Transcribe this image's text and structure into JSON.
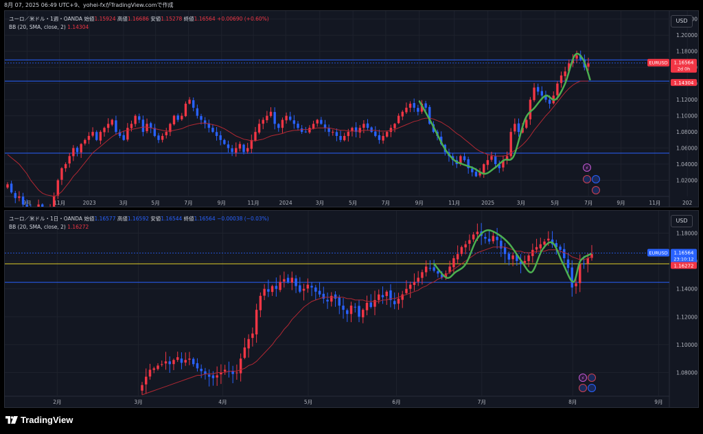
{
  "caption": "8月 07, 2025 06:49 UTC+9、yohei-fxがTradingView.comで作成",
  "branding": "TradingView",
  "colors": {
    "up": "#f23645",
    "down": "#2962ff",
    "bb": "#b22833",
    "wave": "#4caf50",
    "hline": "#2962ff",
    "yellow": "#e5d32a"
  },
  "panes": [
    {
      "legend": {
        "title": "ユーロ／米ドル・1週・OANDA",
        "open_k": "始値",
        "open_v": "1.15924",
        "high_k": "高値",
        "high_v": "1.16686",
        "low_k": "安値",
        "low_v": "1.15278",
        "close_k": "終値",
        "close_v": "1.16564",
        "change": "+0.00690 (+0.60%)",
        "bb_label": "BB (20, SMA, close, 2)",
        "bb_value": "1.14304"
      },
      "currency_button": "USD",
      "price_tag": {
        "symbol": "EURUSD",
        "price": "1.16564",
        "countdown": "2d 0h"
      },
      "bb_tag": "1.14304"
    },
    {
      "legend": {
        "title": "ユーロ／米ドル・1日・OANDA",
        "open_k": "始値",
        "open_v": "1.16577",
        "high_k": "高値",
        "high_v": "1.16592",
        "low_k": "安値",
        "low_v": "1.16544",
        "close_k": "終値",
        "close_v": "1.16564",
        "change": "−0.00038 (−0.03%)",
        "bb_label": "BB (20, SMA, close, 2)",
        "bb_value": "1.16272"
      },
      "currency_button": "USD",
      "price_tag": {
        "symbol": "EURUSD",
        "price": "1.16564",
        "countdown": "23:10:12"
      },
      "bb_tag": "1.16272"
    }
  ],
  "chart_data": [
    {
      "type": "candlestick",
      "timeframe": "1W",
      "ylim": [
        1.0,
        1.23
      ],
      "y_ticks": [
        "1.22000",
        "1.20000",
        "1.18000",
        "1.16000",
        "1.14000",
        "1.12000",
        "1.10000",
        "1.08000",
        "1.06000",
        "1.04000",
        "1.02000",
        "1.00000"
      ],
      "x_ticks": [
        {
          "label": "9月",
          "pos": 0.0322
        },
        {
          "label": "11月",
          "pos": 0.0789
        },
        {
          "label": "2023",
          "pos": 0.1219
        },
        {
          "label": "3月",
          "pos": 0.1711
        },
        {
          "label": "5月",
          "pos": 0.2174
        },
        {
          "label": "7月",
          "pos": 0.2648
        },
        {
          "label": "9月",
          "pos": 0.3126
        },
        {
          "label": "11月",
          "pos": 0.3585
        },
        {
          "label": "2024",
          "pos": 0.4051
        },
        {
          "label": "3月",
          "pos": 0.4543
        },
        {
          "label": "5月",
          "pos": 0.5021
        },
        {
          "label": "7月",
          "pos": 0.5494
        },
        {
          "label": "9月",
          "pos": 0.5978
        },
        {
          "label": "11月",
          "pos": 0.6483
        },
        {
          "label": "2025",
          "pos": 0.6967
        },
        {
          "label": "3月",
          "pos": 0.7445
        },
        {
          "label": "5月",
          "pos": 0.7934
        },
        {
          "label": "7月",
          "pos": 0.8418
        },
        {
          "label": "9月",
          "pos": 0.8886
        },
        {
          "label": "11月",
          "pos": 0.9375
        },
        {
          "label": "202",
          "pos": 0.9843
        }
      ],
      "closes": [
        1.015,
        1.005,
        0.998,
        1.0,
        0.99,
        0.985,
        0.975,
        0.97,
        0.99,
        0.975,
        0.98,
        0.985,
        1.0,
        1.02,
        1.035,
        1.04,
        1.05,
        1.06,
        1.055,
        1.065,
        1.07,
        1.075,
        1.08,
        1.07,
        1.08,
        1.085,
        1.09,
        1.095,
        1.08,
        1.075,
        1.07,
        1.085,
        1.09,
        1.1,
        1.095,
        1.08,
        1.09,
        1.085,
        1.075,
        1.07,
        1.075,
        1.08,
        1.09,
        1.1,
        1.095,
        1.1,
        1.115,
        1.12,
        1.11,
        1.1,
        1.095,
        1.09,
        1.085,
        1.08,
        1.075,
        1.07,
        1.065,
        1.06,
        1.055,
        1.06,
        1.065,
        1.055,
        1.06,
        1.07,
        1.08,
        1.09,
        1.095,
        1.1,
        1.105,
        1.09,
        1.085,
        1.095,
        1.1,
        1.095,
        1.09,
        1.085,
        1.08,
        1.08,
        1.085,
        1.09,
        1.095,
        1.09,
        1.085,
        1.08,
        1.08,
        1.075,
        1.07,
        1.075,
        1.08,
        1.085,
        1.08,
        1.085,
        1.09,
        1.085,
        1.08,
        1.075,
        1.07,
        1.075,
        1.08,
        1.085,
        1.09,
        1.1,
        1.105,
        1.11,
        1.115,
        1.11,
        1.105,
        1.115,
        1.11,
        1.09,
        1.08,
        1.075,
        1.065,
        1.055,
        1.05,
        1.045,
        1.04,
        1.05,
        1.045,
        1.035,
        1.03,
        1.025,
        1.03,
        1.04,
        1.045,
        1.05,
        1.04,
        1.035,
        1.045,
        1.05,
        1.08,
        1.09,
        1.08,
        1.085,
        1.095,
        1.12,
        1.135,
        1.13,
        1.125,
        1.12,
        1.115,
        1.125,
        1.14,
        1.15,
        1.155,
        1.165,
        1.17,
        1.175,
        1.17,
        1.16,
        1.165
      ],
      "bb_basis": [
        1.052,
        1.048,
        1.044,
        1.04,
        1.034,
        1.028,
        1.02,
        1.014,
        1.008,
        1.004,
        1.002,
        1.001,
        1.0,
        1.002,
        1.006,
        1.012,
        1.018,
        1.025,
        1.03,
        1.036,
        1.042,
        1.048,
        1.054,
        1.058,
        1.062,
        1.066,
        1.07,
        1.074,
        1.077,
        1.079,
        1.081,
        1.082,
        1.083,
        1.084,
        1.085,
        1.086,
        1.086,
        1.085,
        1.084,
        1.083,
        1.082,
        1.081,
        1.081,
        1.082,
        1.083,
        1.084,
        1.086,
        1.088,
        1.089,
        1.09,
        1.091,
        1.091,
        1.09,
        1.089,
        1.088,
        1.086,
        1.084,
        1.081,
        1.078,
        1.075,
        1.073,
        1.071,
        1.07,
        1.069,
        1.069,
        1.07,
        1.071,
        1.073,
        1.075,
        1.076,
        1.077,
        1.078,
        1.08,
        1.081,
        1.082,
        1.082,
        1.083,
        1.083,
        1.083,
        1.084,
        1.085,
        1.085,
        1.085,
        1.085,
        1.084,
        1.083,
        1.082,
        1.082,
        1.081,
        1.081,
        1.081,
        1.081,
        1.082,
        1.082,
        1.082,
        1.082,
        1.081,
        1.081,
        1.081,
        1.082,
        1.083,
        1.085,
        1.087,
        1.089,
        1.091,
        1.093,
        1.094,
        1.096,
        1.097,
        1.097,
        1.096,
        1.094,
        1.092,
        1.089,
        1.086,
        1.082,
        1.078,
        1.075,
        1.071,
        1.067,
        1.063,
        1.059,
        1.056,
        1.054,
        1.052,
        1.051,
        1.05,
        1.05,
        1.05,
        1.051,
        1.054,
        1.057,
        1.06,
        1.064,
        1.069,
        1.075,
        1.082,
        1.088,
        1.094,
        1.1,
        1.105,
        1.111,
        1.117,
        1.123,
        1.129,
        1.134,
        1.138,
        1.141,
        1.143,
        1.143,
        1.143
      ],
      "wave_x": [
        0.598,
        0.616,
        0.634,
        0.648,
        0.66,
        0.676,
        0.692,
        0.706,
        0.72,
        0.734,
        0.75,
        0.764,
        0.78,
        0.794,
        0.808,
        0.822,
        0.834,
        0.844
      ],
      "wave_y": [
        1.118,
        1.09,
        1.06,
        1.045,
        1.04,
        1.035,
        1.028,
        1.035,
        1.045,
        1.05,
        1.095,
        1.11,
        1.125,
        1.12,
        1.14,
        1.175,
        1.17,
        1.145
      ],
      "hlines": [
        1.1693,
        1.143,
        1.0537
      ],
      "dotted_price": 1.1655
    },
    {
      "type": "candlestick",
      "timeframe": "1D",
      "ylim": [
        1.063,
        1.196
      ],
      "y_ticks": [
        "1.18000",
        "1.16000",
        "1.14000",
        "1.12000",
        "1.10000",
        "1.08000"
      ],
      "x_ticks": [
        {
          "label": "2月",
          "pos": 0.0756
        },
        {
          "label": "3月",
          "pos": 0.1926
        },
        {
          "label": "4月",
          "pos": 0.3143
        },
        {
          "label": "5月",
          "pos": 0.4376
        },
        {
          "label": "6月",
          "pos": 0.5648
        },
        {
          "label": "7月",
          "pos": 0.6879
        },
        {
          "label": "8月",
          "pos": 0.8191
        },
        {
          "label": "9月",
          "pos": 0.9429
        }
      ],
      "closes": [
        1.071,
        1.077,
        1.082,
        1.083,
        1.085,
        1.086,
        1.088,
        1.086,
        1.089,
        1.091,
        1.087,
        1.089,
        1.09,
        1.086,
        1.083,
        1.081,
        1.079,
        1.077,
        1.076,
        1.078,
        1.08,
        1.082,
        1.081,
        1.079,
        1.08,
        1.09,
        1.098,
        1.104,
        1.108,
        1.125,
        1.135,
        1.14,
        1.138,
        1.142,
        1.14,
        1.145,
        1.147,
        1.145,
        1.148,
        1.142,
        1.138,
        1.14,
        1.143,
        1.141,
        1.138,
        1.136,
        1.133,
        1.131,
        1.135,
        1.133,
        1.128,
        1.125,
        1.122,
        1.128,
        1.127,
        1.12,
        1.125,
        1.13,
        1.127,
        1.132,
        1.136,
        1.134,
        1.138,
        1.132,
        1.129,
        1.133,
        1.136,
        1.14,
        1.143,
        1.145,
        1.148,
        1.152,
        1.156,
        1.155,
        1.153,
        1.151,
        1.148,
        1.151,
        1.156,
        1.162,
        1.165,
        1.17,
        1.172,
        1.175,
        1.179,
        1.181,
        1.178,
        1.176,
        1.174,
        1.178,
        1.175,
        1.169,
        1.165,
        1.161,
        1.164,
        1.16,
        1.158,
        1.16,
        1.164,
        1.168,
        1.17,
        1.172,
        1.174,
        1.176,
        1.172,
        1.17,
        1.168,
        1.162,
        1.155,
        1.141,
        1.144,
        1.158,
        1.158,
        1.162,
        1.165
      ],
      "bb_basis": [
        1.064,
        1.065,
        1.066,
        1.067,
        1.068,
        1.069,
        1.07,
        1.071,
        1.072,
        1.073,
        1.074,
        1.075,
        1.076,
        1.077,
        1.078,
        1.078,
        1.079,
        1.079,
        1.079,
        1.08,
        1.08,
        1.08,
        1.081,
        1.081,
        1.081,
        1.082,
        1.083,
        1.085,
        1.086,
        1.088,
        1.091,
        1.094,
        1.097,
        1.1,
        1.104,
        1.107,
        1.111,
        1.114,
        1.118,
        1.121,
        1.124,
        1.127,
        1.129,
        1.131,
        1.132,
        1.133,
        1.134,
        1.134,
        1.134,
        1.134,
        1.134,
        1.134,
        1.133,
        1.133,
        1.132,
        1.132,
        1.132,
        1.131,
        1.131,
        1.131,
        1.131,
        1.132,
        1.132,
        1.133,
        1.133,
        1.134,
        1.135,
        1.136,
        1.137,
        1.138,
        1.139,
        1.141,
        1.142,
        1.144,
        1.145,
        1.147,
        1.148,
        1.15,
        1.152,
        1.154,
        1.156,
        1.158,
        1.16,
        1.162,
        1.164,
        1.166,
        1.167,
        1.168,
        1.169,
        1.17,
        1.17,
        1.17,
        1.17,
        1.169,
        1.168,
        1.167,
        1.167,
        1.166,
        1.166,
        1.166,
        1.167,
        1.167,
        1.167,
        1.168,
        1.168,
        1.168,
        1.167,
        1.166,
        1.165,
        1.163,
        1.162,
        1.161,
        1.161,
        1.162,
        1.163
      ],
      "wave_x": [
        0.619,
        0.637,
        0.65,
        0.665,
        0.68,
        0.695,
        0.712,
        0.728,
        0.745,
        0.76,
        0.775,
        0.79,
        0.805,
        0.82,
        0.83,
        0.845
      ],
      "wave_y": [
        1.158,
        1.148,
        1.152,
        1.158,
        1.175,
        1.182,
        1.179,
        1.172,
        1.16,
        1.152,
        1.168,
        1.173,
        1.158,
        1.145,
        1.16,
        1.165
      ],
      "hlines": [
        1.1447
      ],
      "yellow_line": 1.158,
      "dotted_price": 1.1657
    }
  ]
}
